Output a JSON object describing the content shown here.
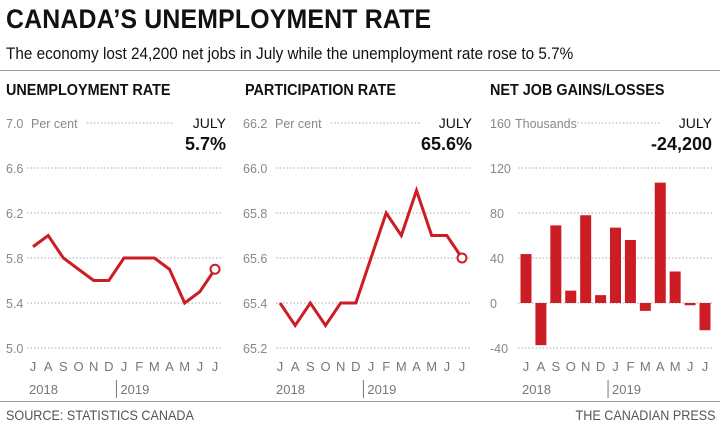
{
  "title": "CANADA’S UNEMPLOYMENT RATE",
  "subtitle": "The economy lost 24,200 net jobs in July while the unemployment rate rose to 5.7%",
  "source": "SOURCE: STATISTICS CANADA",
  "credit": "THE CANADIAN PRESS",
  "colors": {
    "series": "#cc1c24",
    "text": "#111111",
    "axis": "#888888"
  },
  "chart_data": [
    {
      "type": "line",
      "title": "UNEMPLOYMENT RATE",
      "unit": "Per cent",
      "callout_label": "JULY",
      "callout_value": "5.7%",
      "categories": [
        "J",
        "A",
        "S",
        "O",
        "N",
        "D",
        "J",
        "F",
        "M",
        "A",
        "M",
        "J",
        "J"
      ],
      "years": [
        "2018",
        "2019"
      ],
      "values": [
        5.9,
        6.0,
        5.8,
        5.7,
        5.6,
        5.6,
        5.8,
        5.8,
        5.8,
        5.7,
        5.4,
        5.5,
        5.7
      ],
      "ylim": [
        5.0,
        7.0
      ],
      "yticks": [
        "7.0",
        "6.6",
        "6.2",
        "5.8",
        "5.4",
        "5.0"
      ],
      "grid": true
    },
    {
      "type": "line",
      "title": "PARTICIPATION RATE",
      "unit": "Per cent",
      "callout_label": "JULY",
      "callout_value": "65.6%",
      "categories": [
        "J",
        "A",
        "S",
        "O",
        "N",
        "D",
        "J",
        "F",
        "M",
        "A",
        "M",
        "J",
        "J"
      ],
      "years": [
        "2018",
        "2019"
      ],
      "values": [
        65.4,
        65.3,
        65.4,
        65.3,
        65.4,
        65.4,
        65.6,
        65.8,
        65.7,
        65.9,
        65.7,
        65.7,
        65.6
      ],
      "ylim": [
        65.2,
        66.2
      ],
      "yticks": [
        "66.2",
        "66.0",
        "65.8",
        "65.6",
        "65.4",
        "65.2"
      ],
      "grid": true
    },
    {
      "type": "bar",
      "title": "NET JOB GAINS/LOSSES",
      "unit": "Thousands",
      "callout_label": "JULY",
      "callout_value": "-24,200",
      "categories": [
        "J",
        "A",
        "S",
        "O",
        "N",
        "D",
        "J",
        "F",
        "M",
        "A",
        "M",
        "J",
        "J"
      ],
      "years": [
        "2018",
        "2019"
      ],
      "values": [
        43.5,
        -37.5,
        69,
        11,
        78,
        7,
        67,
        56,
        -7,
        107,
        28,
        -2,
        -24.2
      ],
      "ylim": [
        -40,
        160
      ],
      "yticks": [
        "160",
        "120",
        "80",
        "40",
        "0",
        "-40"
      ],
      "grid": true
    }
  ]
}
